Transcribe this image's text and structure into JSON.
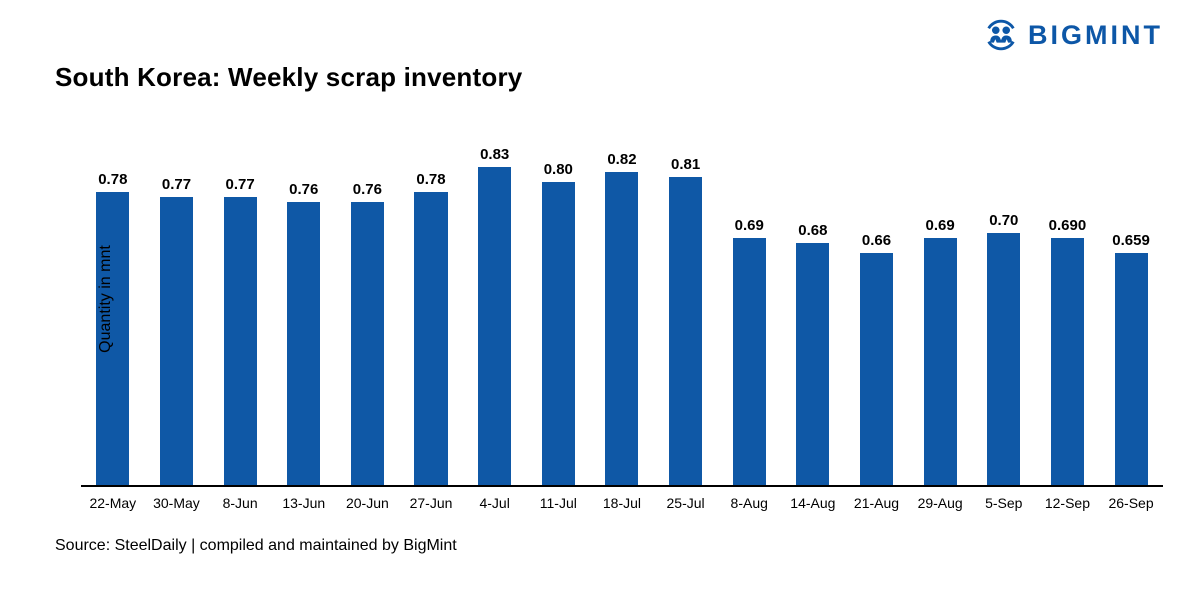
{
  "logo": {
    "text": "BIGMINT",
    "color": "#0d57a7"
  },
  "title": "South Korea: Weekly scrap inventory",
  "source": "Source: SteelDaily | compiled and maintained by BigMint",
  "chart_data": {
    "type": "bar",
    "title": "South Korea: Weekly scrap inventory",
    "xlabel": "",
    "ylabel": "Quantity in mnt",
    "categories": [
      "22-May",
      "30-May",
      "8-Jun",
      "13-Jun",
      "20-Jun",
      "27-Jun",
      "4-Jul",
      "11-Jul",
      "18-Jul",
      "25-Jul",
      "8-Aug",
      "14-Aug",
      "21-Aug",
      "29-Aug",
      "5-Sep",
      "12-Sep",
      "26-Sep"
    ],
    "values": [
      0.78,
      0.77,
      0.77,
      0.76,
      0.76,
      0.78,
      0.83,
      0.8,
      0.82,
      0.81,
      0.69,
      0.68,
      0.66,
      0.69,
      0.7,
      0.69,
      0.659
    ],
    "value_labels": [
      "0.78",
      "0.77",
      "0.77",
      "0.76",
      "0.76",
      "0.78",
      "0.83",
      "0.80",
      "0.82",
      "0.81",
      "0.69",
      "0.68",
      "0.66",
      "0.69",
      "0.70",
      "0.690",
      "0.659"
    ],
    "ylim": [
      0.2,
      0.85
    ],
    "bar_color": "#0f58a6",
    "grid": false,
    "legend": false,
    "data_labels": true
  }
}
